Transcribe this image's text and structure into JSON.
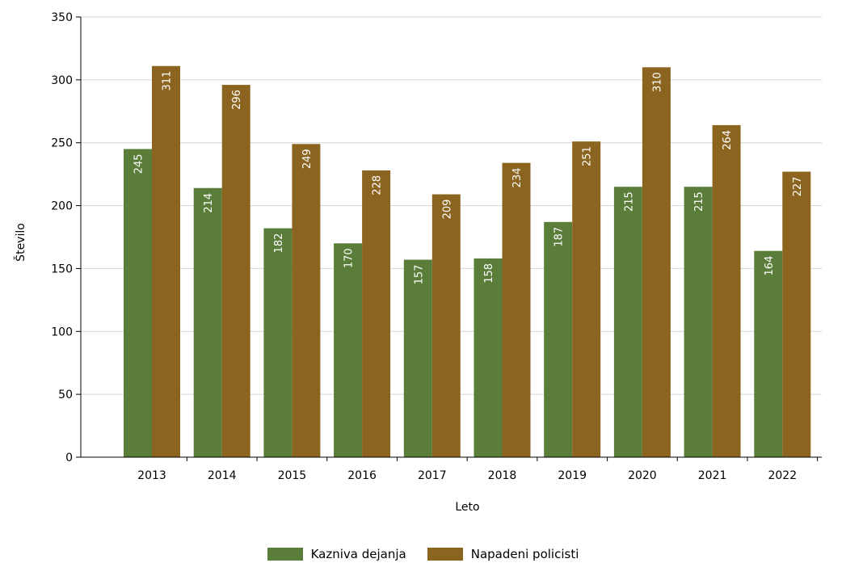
{
  "chart_data": {
    "type": "bar",
    "categories": [
      "2013",
      "2014",
      "2015",
      "2016",
      "2017",
      "2018",
      "2019",
      "2020",
      "2021",
      "2022"
    ],
    "series": [
      {
        "name": "Kazniva dejanja",
        "color": "#5a7d3a",
        "values": [
          245,
          214,
          182,
          170,
          157,
          158,
          187,
          215,
          215,
          164
        ]
      },
      {
        "name": "Napadeni policisti",
        "color": "#8b6420",
        "values": [
          311,
          296,
          249,
          228,
          209,
          234,
          251,
          310,
          264,
          227
        ]
      }
    ],
    "xlabel": "Leto",
    "ylabel": "Število",
    "ylim": [
      0,
      350
    ],
    "yticks": [
      0,
      50,
      100,
      150,
      200,
      250,
      300,
      350
    ],
    "grid": true,
    "data_labels": true,
    "legend_position": "bottom"
  }
}
